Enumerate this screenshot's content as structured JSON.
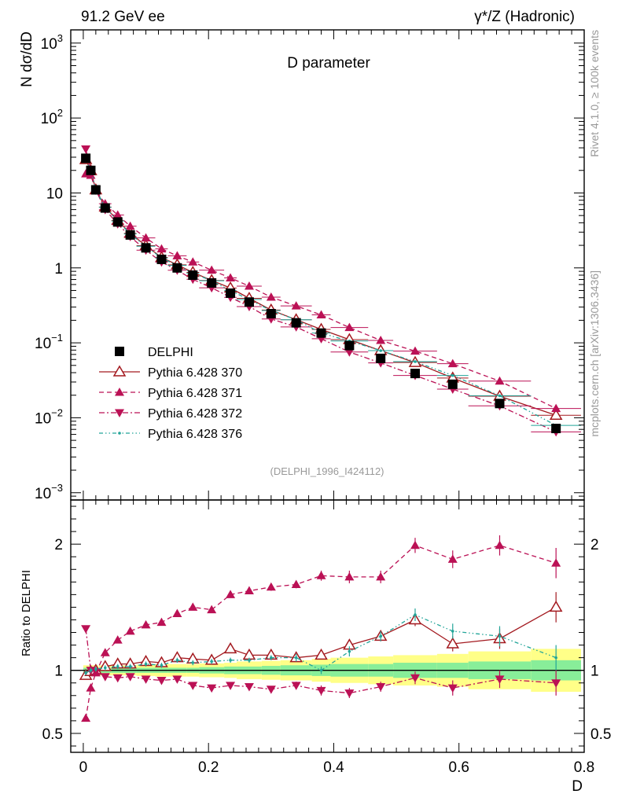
{
  "header": {
    "left_title": "91.2 GeV ee",
    "right_title": "γ*/Z (Hadronic)",
    "side_rivet": "Rivet 4.1.0, ≥ 100k events",
    "side_mcplots": "mcplots.cern.ch [arXiv:1306.3436]"
  },
  "chart_data": {
    "type": "line",
    "title": "D parameter",
    "analysis_tag": "(DELPHI_1996_I424112)",
    "xlabel": "D",
    "ylabel_main": "N  dσ/dD",
    "ylabel_ratio": "Ratio to DELPHI",
    "xlim": [
      -0.02,
      0.8
    ],
    "ylim_main": [
      0.0008,
      1500
    ],
    "ylim_main_scale": "log",
    "ylim_ratio": [
      0.35,
      2.35
    ],
    "x_ticks": [
      "0",
      "0.2",
      "0.4",
      "0.6",
      "0.8"
    ],
    "y_ticks_main": [
      {
        "value": 1000,
        "base": "10",
        "exp": "3"
      },
      {
        "value": 100,
        "base": "10",
        "exp": "2"
      },
      {
        "value": 10,
        "base": "10",
        "exp": ""
      },
      {
        "value": 1,
        "base": "1",
        "exp": ""
      },
      {
        "value": 0.1,
        "base": "10",
        "exp": "−1"
      },
      {
        "value": 0.01,
        "base": "10",
        "exp": "−2"
      },
      {
        "value": 0.001,
        "base": "10",
        "exp": "−3"
      }
    ],
    "y_ticks_ratio": [
      {
        "value": 0.5,
        "label": "0.5"
      },
      {
        "value": 1,
        "label": "1"
      },
      {
        "value": 2,
        "label": "2"
      }
    ],
    "legend_position": "center-left",
    "x": [
      0.004,
      0.012,
      0.02,
      0.035,
      0.055,
      0.075,
      0.1,
      0.125,
      0.15,
      0.175,
      0.205,
      0.235,
      0.265,
      0.3,
      0.34,
      0.38,
      0.425,
      0.475,
      0.53,
      0.59,
      0.665,
      0.755
    ],
    "x_halfwidth": [
      0.004,
      0.004,
      0.004,
      0.01,
      0.01,
      0.01,
      0.015,
      0.01,
      0.015,
      0.01,
      0.02,
      0.01,
      0.02,
      0.015,
      0.025,
      0.015,
      0.03,
      0.02,
      0.035,
      0.025,
      0.05,
      0.04
    ],
    "data": {
      "name": "DELPHI",
      "values": [
        29.0,
        20.0,
        11.0,
        6.3,
        4.1,
        2.75,
        1.85,
        1.3,
        1.0,
        0.8,
        0.63,
        0.46,
        0.35,
        0.245,
        0.185,
        0.135,
        0.092,
        0.062,
        0.039,
        0.028,
        0.0155,
        0.0072
      ],
      "band_stat": [
        0.02,
        0.02,
        0.02,
        0.02,
        0.02,
        0.02,
        0.02,
        0.02,
        0.02,
        0.02,
        0.025,
        0.03,
        0.03,
        0.035,
        0.04,
        0.045,
        0.05,
        0.05,
        0.06,
        0.06,
        0.07,
        0.08
      ],
      "band_total": [
        0.04,
        0.04,
        0.04,
        0.04,
        0.04,
        0.04,
        0.045,
        0.05,
        0.05,
        0.05,
        0.055,
        0.06,
        0.07,
        0.075,
        0.08,
        0.09,
        0.1,
        0.11,
        0.12,
        0.13,
        0.15,
        0.17
      ]
    },
    "series": [
      {
        "name": "Pythia 6.428 370",
        "color": "#a3191f",
        "style": "solid",
        "marker": "open-triangle-up",
        "ratio": [
          0.96,
          0.99,
          1.0,
          1.03,
          1.05,
          1.05,
          1.07,
          1.06,
          1.1,
          1.09,
          1.08,
          1.17,
          1.12,
          1.12,
          1.1,
          1.12,
          1.2,
          1.27,
          1.4,
          1.21,
          1.25,
          1.5
        ],
        "ratio_err": [
          0.02,
          0.02,
          0.02,
          0.02,
          0.02,
          0.02,
          0.02,
          0.02,
          0.02,
          0.02,
          0.02,
          0.02,
          0.02,
          0.02,
          0.02,
          0.03,
          0.03,
          0.04,
          0.05,
          0.06,
          0.08,
          0.12
        ]
      },
      {
        "name": "Pythia 6.428 371",
        "color": "#bb1155",
        "style": "dashed",
        "marker": "filled-triangle-up",
        "ratio": [
          0.62,
          0.86,
          0.98,
          1.14,
          1.24,
          1.31,
          1.36,
          1.38,
          1.45,
          1.5,
          1.48,
          1.6,
          1.63,
          1.66,
          1.68,
          1.75,
          1.74,
          1.74,
          1.99,
          1.88,
          1.99,
          1.85
        ],
        "ratio_err": [
          0.02,
          0.02,
          0.02,
          0.02,
          0.02,
          0.02,
          0.02,
          0.02,
          0.02,
          0.02,
          0.02,
          0.02,
          0.02,
          0.03,
          0.03,
          0.04,
          0.05,
          0.05,
          0.06,
          0.07,
          0.08,
          0.12
        ]
      },
      {
        "name": "Pythia 6.428 372",
        "color": "#bb1155",
        "style": "dashdot",
        "marker": "filled-triangle-down",
        "ratio": [
          1.33,
          1.0,
          0.99,
          0.95,
          0.94,
          0.95,
          0.93,
          0.92,
          0.93,
          0.88,
          0.86,
          0.88,
          0.87,
          0.85,
          0.88,
          0.84,
          0.82,
          0.87,
          0.94,
          0.86,
          0.93,
          0.9
        ],
        "ratio_err": [
          0.02,
          0.02,
          0.02,
          0.02,
          0.02,
          0.02,
          0.02,
          0.02,
          0.02,
          0.02,
          0.02,
          0.02,
          0.02,
          0.02,
          0.03,
          0.04,
          0.04,
          0.04,
          0.05,
          0.06,
          0.07,
          0.1
        ]
      },
      {
        "name": "Pythia 6.428 376",
        "color": "#22a599",
        "style": "dashdotdot",
        "marker": "dot",
        "ratio": [
          0.98,
          1.0,
          1.01,
          1.02,
          1.03,
          1.03,
          1.05,
          1.04,
          1.08,
          1.06,
          1.07,
          1.08,
          1.08,
          1.1,
          1.1,
          1.0,
          1.15,
          1.27,
          1.44,
          1.31,
          1.27,
          1.1
        ],
        "ratio_err": [
          0.02,
          0.02,
          0.02,
          0.02,
          0.02,
          0.02,
          0.02,
          0.02,
          0.02,
          0.02,
          0.02,
          0.02,
          0.02,
          0.02,
          0.03,
          0.03,
          0.04,
          0.04,
          0.05,
          0.06,
          0.08,
          0.1
        ]
      }
    ]
  }
}
